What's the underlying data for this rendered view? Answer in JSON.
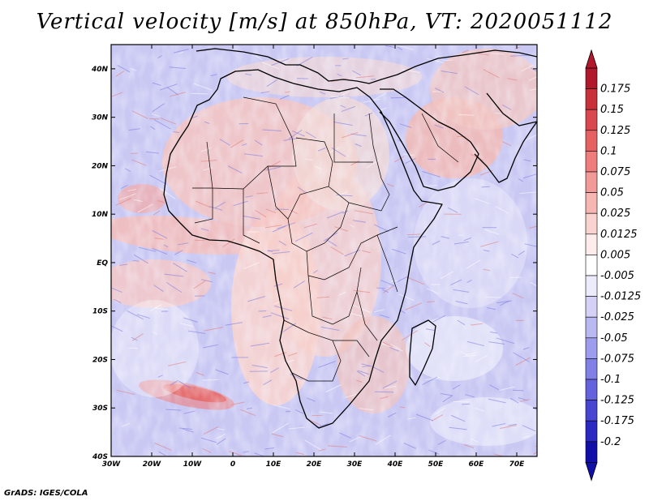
{
  "title": "Vertical velocity [m/s] at 850hPa, VT: 2020051112",
  "credit": "GrADS: IGES/COLA",
  "lat_labels": [
    "40N",
    "30N",
    "20N",
    "10N",
    "EQ",
    "10S",
    "20S",
    "30S",
    "40S"
  ],
  "lon_labels": [
    "30W",
    "20W",
    "10W",
    "0",
    "10E",
    "20E",
    "30E",
    "40E",
    "50E",
    "60E",
    "70E"
  ],
  "colorbar": {
    "labels": [
      "0.175",
      "0.15",
      "0.125",
      "0.1",
      "0.075",
      "0.05",
      "0.025",
      "0.0125",
      "0.005",
      "-0.005",
      "-0.0125",
      "-0.025",
      "-0.05",
      "-0.075",
      "-0.1",
      "-0.125",
      "-0.175",
      "-0.2"
    ],
    "colors": [
      "#b2182b",
      "#c8303a",
      "#d9484e",
      "#e66262",
      "#ee7d7b",
      "#f29a97",
      "#f6b6b2",
      "#fad2cf",
      "#fdeceb",
      "#ffffff",
      "#ecebfb",
      "#d3d2f6",
      "#b9b8f1",
      "#9d9ced",
      "#8180e6",
      "#6463dd",
      "#4746d2",
      "#2a29c2",
      "#100fa8"
    ]
  },
  "chart_data": {
    "type": "heatmap",
    "title": "Vertical velocity [m/s] at 850hPa, VT: 2020051112",
    "variable": "Vertical velocity",
    "units": "m/s",
    "level": "850hPa",
    "valid_time": "2020051112",
    "xlabel": "",
    "ylabel": "",
    "xlim": [
      -30,
      75
    ],
    "ylim": [
      -40,
      45
    ],
    "x_ticks": [
      "30W",
      "20W",
      "10W",
      "0",
      "10E",
      "20E",
      "30E",
      "40E",
      "50E",
      "60E",
      "70E"
    ],
    "y_ticks": [
      "40N",
      "30N",
      "20N",
      "10N",
      "EQ",
      "10S",
      "20S",
      "30S",
      "40S"
    ],
    "contour_levels": [
      -0.2,
      -0.175,
      -0.125,
      -0.1,
      -0.075,
      -0.05,
      -0.025,
      -0.0125,
      -0.005,
      0.005,
      0.0125,
      0.025,
      0.05,
      0.075,
      0.1,
      0.125,
      0.15,
      0.175
    ]
  }
}
